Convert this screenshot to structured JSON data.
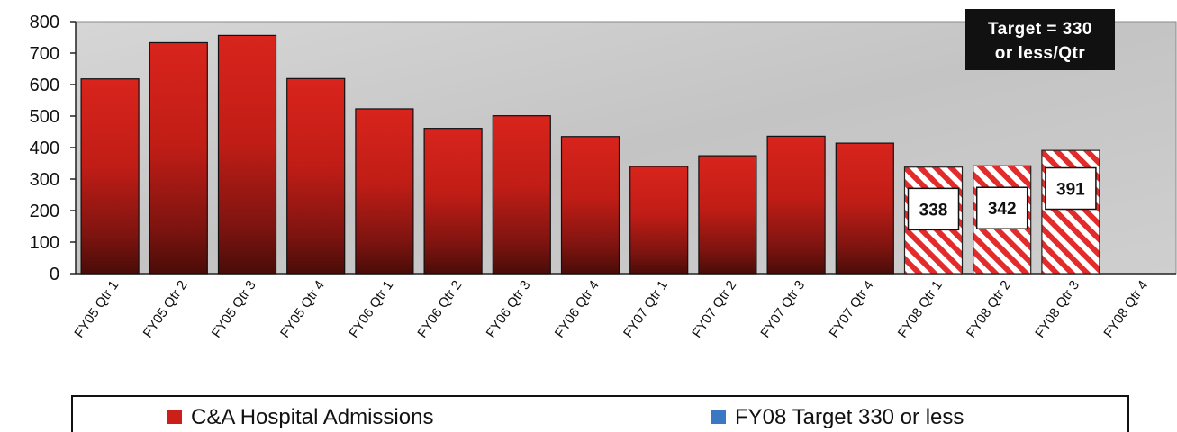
{
  "chart_data": {
    "type": "bar",
    "title": "",
    "xlabel": "",
    "ylabel": "",
    "ylim": [
      0,
      800
    ],
    "yticks": [
      0,
      100,
      200,
      300,
      400,
      500,
      600,
      700,
      800
    ],
    "grid": false,
    "categories": [
      "FY05 Qtr 1",
      "FY05 Qtr 2",
      "FY05 Qtr 3",
      "FY05 Qtr 4",
      "FY06 Qtr 1",
      "FY06 Qtr 2",
      "FY06 Qtr 3",
      "FY06 Qtr 4",
      "FY07 Qtr 1",
      "FY07 Qtr 2",
      "FY07 Qtr 3",
      "FY07 Qtr 4",
      "FY08 Qtr 1",
      "FY08 Qtr 2",
      "FY08 Qtr 3",
      "FY08 Qtr 4"
    ],
    "series": [
      {
        "name": "C&A Hospital Admissions",
        "color": "#cc1f1a",
        "values": [
          618,
          733,
          756,
          619,
          523,
          461,
          501,
          435,
          340,
          374,
          436,
          414,
          null,
          null,
          null,
          null
        ]
      },
      {
        "name": "FY08 Target 330 or less",
        "color": "#3a78c4",
        "pattern_color": "#e22b2b",
        "values": [
          null,
          null,
          null,
          null,
          null,
          null,
          null,
          null,
          null,
          null,
          null,
          null,
          338,
          342,
          391,
          null
        ],
        "data_labels": [
          "338",
          "342",
          "391"
        ]
      }
    ],
    "annotation": {
      "text_line1": "Target = 330",
      "text_line2": "or less/Qtr"
    },
    "legend": {
      "placement": "bottom",
      "items": [
        "C&A Hospital Admissions",
        "FY08 Target 330 or less"
      ]
    }
  }
}
